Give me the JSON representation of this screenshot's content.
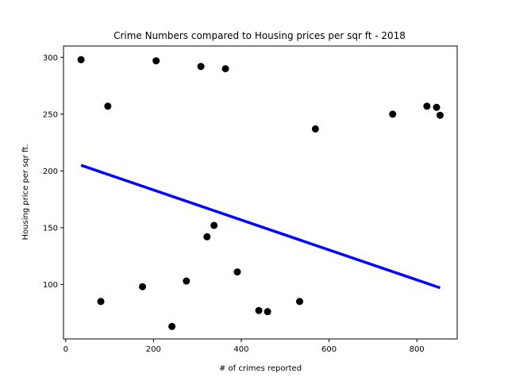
{
  "chart_data": {
    "type": "scatter",
    "title": "Crime Numbers compared to Housing prices per sqr ft - 2018",
    "xlabel": "# of crimes reported",
    "ylabel": "Housing price per sqr ft.",
    "xlim": [
      -5,
      892
    ],
    "ylim": [
      52,
      310
    ],
    "xticks": [
      0,
      200,
      400,
      600,
      800
    ],
    "yticks": [
      100,
      150,
      200,
      250,
      300
    ],
    "grid": false,
    "points_color": "#000000",
    "line_color": "#0000ff",
    "x": [
      35,
      80,
      96,
      175,
      206,
      242,
      275,
      308,
      322,
      338,
      364,
      391,
      440,
      460,
      533,
      569,
      745,
      823,
      845,
      853
    ],
    "y": [
      298,
      85,
      257,
      98,
      297,
      63,
      103,
      292,
      142,
      152,
      290,
      111,
      77,
      76,
      85,
      237,
      250,
      257,
      256,
      249
    ],
    "regression_line": {
      "x": [
        35,
        853
      ],
      "y": [
        205,
        97
      ]
    }
  }
}
